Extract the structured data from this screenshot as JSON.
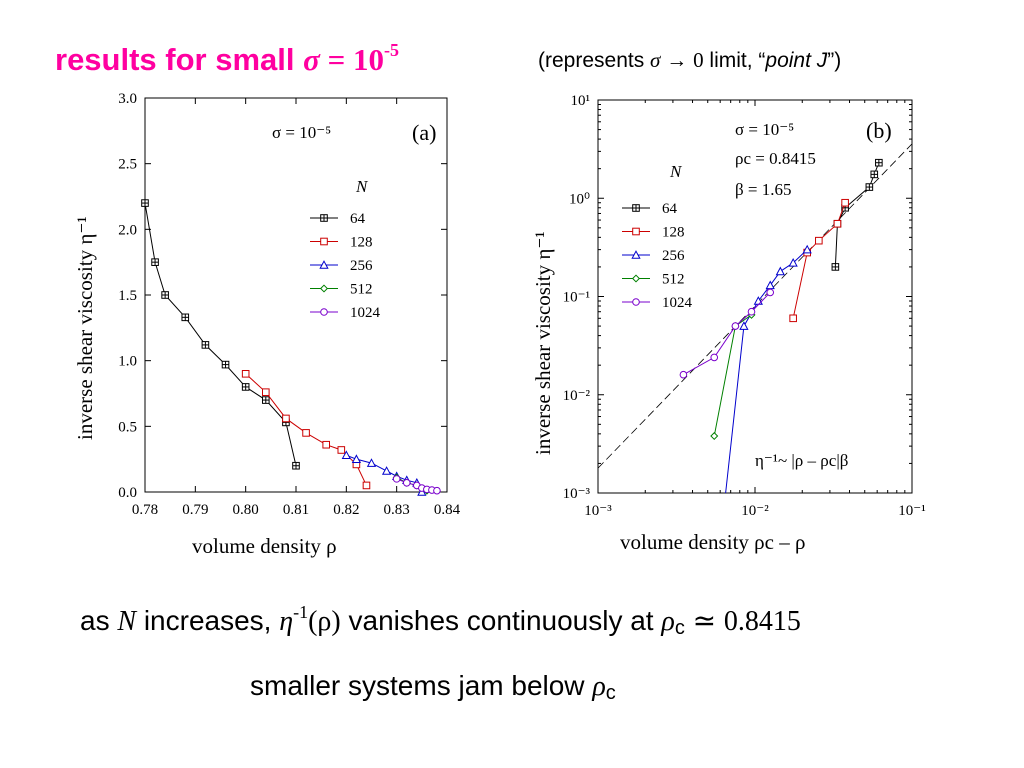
{
  "slide": {
    "title_prefix": "results for small ",
    "title_sigma": "σ",
    "title_eq": " = 10",
    "title_exp": "-5",
    "subtitle_open": "(represents ",
    "subtitle_sigma": "σ",
    "subtitle_arrow": " → ",
    "subtitle_zero": "0",
    "subtitle_mid": " limit, “",
    "subtitle_point": "point J",
    "subtitle_close": "”)",
    "caption1_a": "as ",
    "caption1_N": "N",
    "caption1_b": " increases, ",
    "caption1_eta": "η",
    "caption1_exp": "-1",
    "caption1_rho": "(ρ)",
    "caption1_c": " vanishes continuously at ",
    "caption1_rho2": "ρ",
    "caption1_sub": "c",
    "caption1_approx": " ≃ ",
    "caption1_val": "0.8415",
    "caption2_a": "smaller systems jam below ",
    "caption2_rho": "ρ",
    "caption2_sub": "c"
  },
  "chart_data": [
    {
      "type": "line",
      "panel_label": "(a)",
      "annotation": "σ = 10⁻⁵",
      "xlabel": "volume density  ρ",
      "ylabel": "inverse shear viscosity  η⁻¹",
      "xlim": [
        0.78,
        0.84
      ],
      "ylim": [
        0.0,
        3.0
      ],
      "xticks": [
        "0.78",
        "0.79",
        "0.80",
        "0.81",
        "0.82",
        "0.83",
        "0.84"
      ],
      "yticks": [
        "0.0",
        "0.5",
        "1.0",
        "1.5",
        "2.0",
        "2.5",
        "3.0"
      ],
      "legend_title": "N",
      "legend_position": "upper-right",
      "series": [
        {
          "name": "64",
          "color": "#000000",
          "marker": "square-plus",
          "x": [
            0.78,
            0.782,
            0.784,
            0.788,
            0.792,
            0.796,
            0.8,
            0.804,
            0.808,
            0.81
          ],
          "y": [
            2.2,
            1.75,
            1.5,
            1.33,
            1.12,
            0.97,
            0.8,
            0.7,
            0.53,
            0.2
          ]
        },
        {
          "name": "128",
          "color": "#cc0000",
          "marker": "square",
          "x": [
            0.8,
            0.804,
            0.808,
            0.812,
            0.816,
            0.819,
            0.822,
            0.824
          ],
          "y": [
            0.9,
            0.76,
            0.56,
            0.45,
            0.36,
            0.32,
            0.21,
            0.05
          ]
        },
        {
          "name": "256",
          "color": "#0000cc",
          "marker": "triangle",
          "x": [
            0.82,
            0.822,
            0.825,
            0.828,
            0.83,
            0.832,
            0.834,
            0.835
          ],
          "y": [
            0.28,
            0.25,
            0.22,
            0.16,
            0.12,
            0.09,
            0.07,
            0.0
          ]
        },
        {
          "name": "512",
          "color": "#008000",
          "marker": "diamond",
          "x": [
            0.83,
            0.832,
            0.834,
            0.836
          ],
          "y": [
            0.11,
            0.07,
            0.05,
            0.01
          ]
        },
        {
          "name": "1024",
          "color": "#7a00cc",
          "marker": "circle",
          "x": [
            0.83,
            0.832,
            0.834,
            0.835,
            0.836,
            0.837,
            0.838
          ],
          "y": [
            0.1,
            0.07,
            0.05,
            0.03,
            0.02,
            0.015,
            0.01
          ]
        }
      ]
    },
    {
      "type": "line",
      "panel_label": "(b)",
      "annotation": [
        "σ = 10⁻⁵",
        "ρc = 0.8415",
        "β = 1.65"
      ],
      "fit_label": "η⁻¹~ |ρ – ρc|β",
      "xlabel": "volume density  ρc – ρ",
      "ylabel": "inverse shear viscosity  η⁻¹",
      "xscale": "log",
      "yscale": "log",
      "xlim": [
        0.001,
        0.1
      ],
      "ylim": [
        0.001,
        10
      ],
      "xticks": [
        "10⁻³",
        "10⁻²",
        "10⁻¹"
      ],
      "yticks": [
        "10⁻³",
        "10⁻²",
        "10⁻¹",
        "10⁰",
        "10¹"
      ],
      "legend_title": "N",
      "legend_position": "upper-left",
      "fit": {
        "slope": 1.65,
        "through": [
          0.01,
          0.08
        ]
      },
      "series": [
        {
          "name": "64",
          "color": "#000000",
          "marker": "square-plus",
          "x": [
            0.0325,
            0.0335,
            0.0375,
            0.0535,
            0.0575,
            0.0615
          ],
          "y": [
            0.2,
            0.55,
            0.8,
            1.3,
            1.75,
            2.3
          ]
        },
        {
          "name": "128",
          "color": "#cc0000",
          "marker": "square",
          "x": [
            0.0175,
            0.0215,
            0.0255,
            0.0335,
            0.0375
          ],
          "y": [
            0.06,
            0.28,
            0.37,
            0.55,
            0.9
          ]
        },
        {
          "name": "256",
          "color": "#0000cc",
          "marker": "triangle",
          "x": [
            0.0065,
            0.0085,
            0.0105,
            0.0125,
            0.0145,
            0.0175,
            0.0215
          ],
          "y": [
            0.0008,
            0.05,
            0.09,
            0.13,
            0.18,
            0.22,
            0.3
          ]
        },
        {
          "name": "512",
          "color": "#008000",
          "marker": "diamond",
          "x": [
            0.0055,
            0.0075,
            0.0095
          ],
          "y": [
            0.0038,
            0.05,
            0.065
          ]
        },
        {
          "name": "1024",
          "color": "#7a00cc",
          "marker": "circle",
          "x": [
            0.0035,
            0.0055,
            0.0075,
            0.0095,
            0.0125
          ],
          "y": [
            0.016,
            0.024,
            0.05,
            0.07,
            0.11
          ]
        }
      ]
    }
  ]
}
